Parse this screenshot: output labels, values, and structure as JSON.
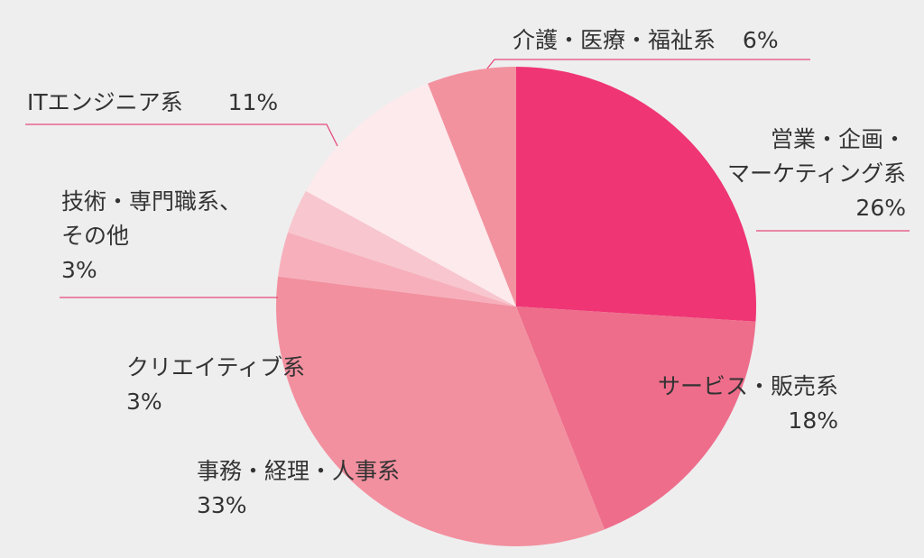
{
  "chart_data": {
    "type": "pie",
    "categories": [
      "営業・企画・マーケティング系",
      "サービス・販売系",
      "事務・経理・人事系",
      "クリエイティブ系",
      "技術・専門職系、その他",
      "ITエンジニア系",
      "介護・医療・福祉系"
    ],
    "values": [
      26,
      18,
      33,
      3,
      3,
      11,
      6
    ],
    "slice_colors": [
      "#ef3574",
      "#ee6d8b",
      "#f2909f",
      "#f7b0bb",
      "#f8c6ce",
      "#fdeaec",
      "#f3929f"
    ]
  },
  "labels": {
    "sales": {
      "line1": "営業・企画・",
      "line2": "マーケティング系",
      "pct": "26%"
    },
    "service": {
      "name": "サービス・販売系",
      "pct": "18%"
    },
    "office": {
      "name": "事務・経理・人事系",
      "pct": "33%"
    },
    "creative": {
      "name": "クリエイティブ系",
      "pct": "3%"
    },
    "tech": {
      "line1": "技術・専門職系、",
      "line2": "その他",
      "pct": "3%"
    },
    "it": {
      "name": "ITエンジニア系",
      "pct": "11%"
    },
    "care": {
      "name": "介護・医療・福祉系",
      "pct": "6%"
    }
  },
  "colors": {
    "background": "#eeeeef",
    "leader_line": "#e64a7b",
    "text": "#333333"
  }
}
